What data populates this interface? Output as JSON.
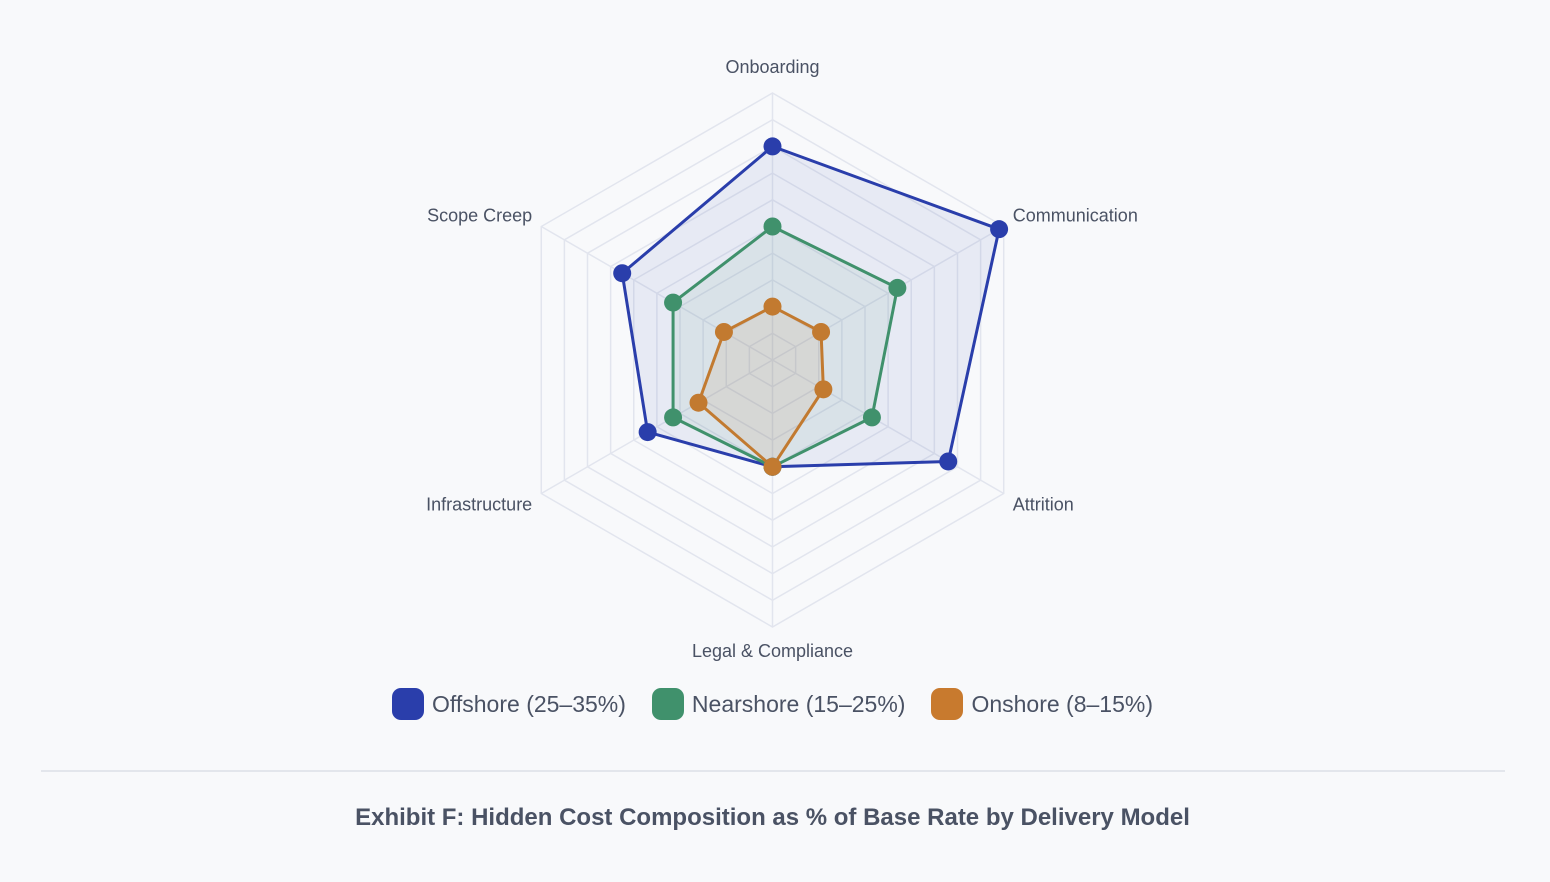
{
  "chart_data": {
    "type": "radar",
    "title": "Exhibit F: Hidden Cost Composition as % of Base Rate by Delivery Model",
    "axes": [
      "Onboarding",
      "Communication",
      "Attrition",
      "Legal & Compliance",
      "Infrastructure",
      "Scope Creep"
    ],
    "range": [
      0,
      10
    ],
    "grid_rings": 10,
    "series": [
      {
        "name": "Offshore (25–35%)",
        "color": "#2a3eab",
        "values": [
          8.0,
          9.8,
          7.6,
          4.0,
          5.4,
          6.5
        ]
      },
      {
        "name": "Nearshore (15–25%)",
        "color": "#40916c",
        "values": [
          5.0,
          5.4,
          4.3,
          4.0,
          4.3,
          4.3
        ]
      },
      {
        "name": "Onshore (8–15%)",
        "color": "#c27a30",
        "values": [
          2.0,
          2.1,
          2.2,
          4.0,
          3.2,
          2.1
        ]
      }
    ],
    "legend_position": "bottom"
  }
}
